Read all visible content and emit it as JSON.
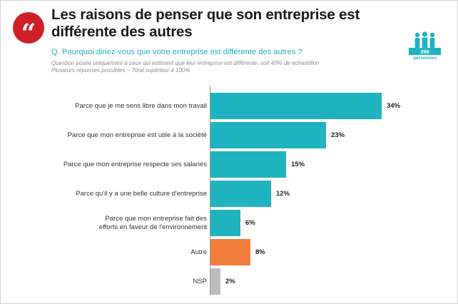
{
  "title": "Les raisons de penser que son entreprise est différente des autres",
  "quote_glyph": "“",
  "question": "Q. Pourquoi diriez-vous que votre entreprise est différente des autres ?",
  "note_line1": "Question posée uniquement à ceux qui estiment que leur entreprise est différente, soit 40% de échantillon",
  "note_line2": "Plusieurs réponses possibles – Total supérieur à 100%",
  "sample": {
    "count": "396",
    "label": "personnes",
    "icon": "people-icon"
  },
  "colors": {
    "teal": "#1fb3bf",
    "orange": "#f07d3c",
    "gray": "#bcbcbc",
    "accent_red": "#cf2027",
    "question": "#21b2c2"
  },
  "chart_data": {
    "type": "bar",
    "orientation": "horizontal",
    "unit": "%",
    "categories": [
      "Parce que je me sens libre dans mon travail",
      "Parce que mon entreprise est utile à la société",
      "Parce que mon entreprise respecte ses salariés",
      "Parce qu'il y a une belle culture d'entreprise",
      "Parce que mon entreprise fait des efforts en faveur de l'environnement",
      "Autre",
      "NSP"
    ],
    "values": [
      34,
      23,
      15,
      12,
      6,
      8,
      2
    ],
    "value_labels": [
      "34%",
      "23%",
      "15%",
      "12%",
      "6%",
      "8%",
      "2%"
    ],
    "bar_colors": [
      "#1fb3bf",
      "#1fb3bf",
      "#1fb3bf",
      "#1fb3bf",
      "#1fb3bf",
      "#f07d3c",
      "#bcbcbc"
    ]
  }
}
